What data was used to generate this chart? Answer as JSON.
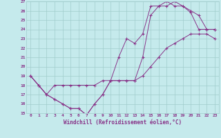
{
  "xlabel": "Windchill (Refroidissement éolien,°C)",
  "bg_color": "#c5eaec",
  "grid_color": "#a0cccc",
  "line_color": "#883388",
  "xlim": [
    -0.5,
    23.5
  ],
  "ylim": [
    15,
    27
  ],
  "xticks": [
    0,
    1,
    2,
    3,
    4,
    5,
    6,
    7,
    8,
    9,
    10,
    11,
    12,
    13,
    14,
    15,
    16,
    17,
    18,
    19,
    20,
    21,
    22,
    23
  ],
  "yticks": [
    15,
    16,
    17,
    18,
    19,
    20,
    21,
    22,
    23,
    24,
    25,
    26,
    27
  ],
  "curve1_x": [
    0,
    1,
    2,
    3,
    4,
    5,
    6,
    7,
    8,
    9,
    10,
    11,
    12,
    13,
    14,
    15,
    16,
    17,
    18,
    19,
    20,
    21,
    22,
    23
  ],
  "curve1_y": [
    19,
    18,
    17,
    18,
    18,
    18,
    18,
    18,
    18,
    18.5,
    18.5,
    18.5,
    18.5,
    18.5,
    19,
    20,
    21,
    22,
    22.5,
    23,
    23.5,
    23.5,
    23.5,
    23
  ],
  "curve2_x": [
    0,
    1,
    2,
    3,
    4,
    5,
    6,
    7,
    8,
    9,
    10,
    11,
    12,
    13,
    14,
    15,
    16,
    17,
    18,
    19,
    20,
    21,
    22,
    23
  ],
  "curve2_y": [
    19,
    18,
    17,
    16.5,
    16,
    15.5,
    15.5,
    14.8,
    16,
    17,
    18.5,
    18.5,
    18.5,
    18.5,
    21,
    25.5,
    26.5,
    26.5,
    27,
    26.5,
    26,
    25.5,
    24,
    24
  ],
  "curve3_x": [
    0,
    1,
    2,
    3,
    4,
    5,
    6,
    7,
    8,
    9,
    10,
    11,
    12,
    13,
    14,
    15,
    16,
    17,
    18,
    19,
    20,
    21,
    22,
    23
  ],
  "curve3_y": [
    19,
    18,
    17,
    16.5,
    16,
    15.5,
    15.5,
    14.8,
    16,
    17,
    18.5,
    21,
    23,
    22.5,
    23.5,
    26.5,
    26.5,
    27,
    26.5,
    26.5,
    25.8,
    24,
    24,
    24
  ]
}
